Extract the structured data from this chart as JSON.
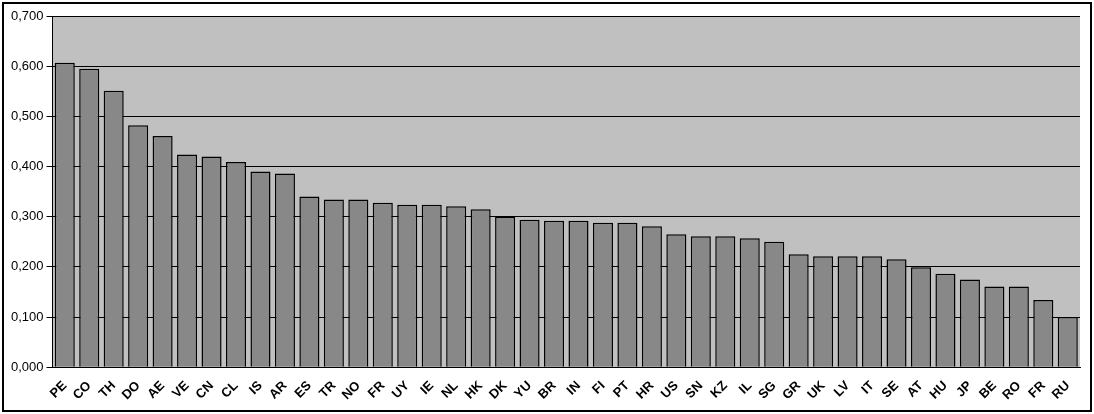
{
  "chart_data": {
    "type": "bar",
    "categories": [
      "PE",
      "CO",
      "TH",
      "DO",
      "AE",
      "VE",
      "CN",
      "CL",
      "IS",
      "AR",
      "ES",
      "TR",
      "NO",
      "FR",
      "UY",
      "IE",
      "NL",
      "HK",
      "DK",
      "YU",
      "BR",
      "IN",
      "FI",
      "PT",
      "HR",
      "US",
      "SN",
      "KZ",
      "IL",
      "SG",
      "GR",
      "UK",
      "LV",
      "IT",
      "SE",
      "AT",
      "HU",
      "JP",
      "BE",
      "RO",
      "FR",
      "RU"
    ],
    "values": [
      0.607,
      0.595,
      0.551,
      0.482,
      0.461,
      0.424,
      0.42,
      0.409,
      0.39,
      0.386,
      0.34,
      0.334,
      0.334,
      0.328,
      0.324,
      0.324,
      0.321,
      0.315,
      0.3,
      0.294,
      0.292,
      0.292,
      0.288,
      0.288,
      0.281,
      0.265,
      0.261,
      0.261,
      0.257,
      0.25,
      0.225,
      0.221,
      0.221,
      0.221,
      0.215,
      0.199,
      0.186,
      0.175,
      0.161,
      0.161,
      0.134,
      0.1
    ],
    "color": "#888888",
    "ylim": [
      0,
      0.7
    ],
    "yticks": [
      {
        "value": 0,
        "label": "0,000"
      },
      {
        "value": 0.1,
        "label": "0,100"
      },
      {
        "value": 0.2,
        "label": "0,200"
      },
      {
        "value": 0.3,
        "label": "0,300"
      },
      {
        "value": 0.4,
        "label": "0,400"
      },
      {
        "value": 0.5,
        "label": "0,500"
      },
      {
        "value": 0.6,
        "label": "0,600"
      },
      {
        "value": 0.7,
        "label": "0,700"
      }
    ],
    "grid": "y",
    "legend": false
  }
}
